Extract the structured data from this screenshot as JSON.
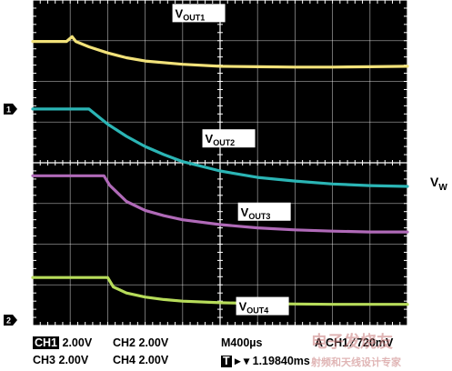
{
  "chart_data": {
    "type": "line",
    "time_per_div_us": 400,
    "grid": {
      "x_divisions": 10,
      "y_divisions": 8,
      "origin": "top-left"
    },
    "series": [
      {
        "name": "VOUT1",
        "label_main": "V",
        "label_sub": "OUT1",
        "color": "#f2e27a",
        "x_div": [
          0,
          0.9,
          1.05,
          1.15,
          1.5,
          2,
          2.5,
          3,
          4,
          5,
          6,
          7,
          8,
          9,
          10
        ],
        "y_div": [
          1.02,
          1.02,
          0.9,
          1.02,
          1.15,
          1.3,
          1.42,
          1.5,
          1.58,
          1.63,
          1.64,
          1.65,
          1.65,
          1.64,
          1.63
        ]
      },
      {
        "name": "VOUT2",
        "label_main": "V",
        "label_sub": "OUT2",
        "color": "#2bb5b5",
        "x_div": [
          0,
          1.5,
          2,
          2.5,
          3,
          3.5,
          4,
          5,
          6,
          7,
          8,
          9,
          10
        ],
        "y_div": [
          2.68,
          2.68,
          3.05,
          3.35,
          3.6,
          3.8,
          3.97,
          4.2,
          4.36,
          4.45,
          4.52,
          4.56,
          4.58
        ]
      },
      {
        "name": "VOUT3",
        "label_main": "V",
        "label_sub": "OUT3",
        "color": "#b06ab8",
        "x_div": [
          0,
          1.9,
          2.05,
          2.5,
          3,
          3.5,
          4,
          5,
          6,
          7,
          8,
          9,
          10
        ],
        "y_div": [
          4.32,
          4.32,
          4.55,
          4.95,
          5.17,
          5.3,
          5.4,
          5.52,
          5.6,
          5.65,
          5.68,
          5.7,
          5.7
        ]
      },
      {
        "name": "VOUT4",
        "label_main": "V",
        "label_sub": "OUT4",
        "color": "#b7dc5a",
        "x_div": [
          0,
          2.0,
          2.15,
          2.5,
          3,
          3.5,
          4,
          5,
          6,
          7,
          8,
          9,
          10
        ],
        "y_div": [
          6.82,
          6.82,
          7.05,
          7.2,
          7.3,
          7.36,
          7.4,
          7.44,
          7.46,
          7.47,
          7.48,
          7.48,
          7.48
        ]
      }
    ],
    "label_positions_div": [
      {
        "series": 0,
        "x": 3.8,
        "y": 0.12
      },
      {
        "series": 1,
        "x": 4.6,
        "y": 3.2
      },
      {
        "series": 2,
        "x": 5.55,
        "y": 5.0
      },
      {
        "series": 3,
        "x": 5.5,
        "y": 7.32
      }
    ],
    "channel_markers": [
      {
        "text": "1",
        "y_div": 2.68
      },
      {
        "text": "2",
        "y_div": 8.0
      }
    ]
  },
  "side_label": {
    "main": "V",
    "sub": "W"
  },
  "status": {
    "ch1": "CH1",
    "ch1_scale": "2.00V",
    "ch2": "CH2",
    "ch2_scale": "2.00V",
    "ch3": "CH3",
    "ch3_scale": "2.00V",
    "ch4": "CH4",
    "ch4_scale": "2.00V",
    "timebase": "M400µs",
    "trigger": "A  CH1 ⁄  720mV",
    "trigger_mark": "T",
    "trigger_pos": "▸ ▾ 1.19840ms"
  },
  "watermark": {
    "top": "电子发烧友",
    "bottom": "射频和天线设计专家"
  },
  "colors": {
    "screen": "#000000",
    "grid": "#ffffff"
  }
}
